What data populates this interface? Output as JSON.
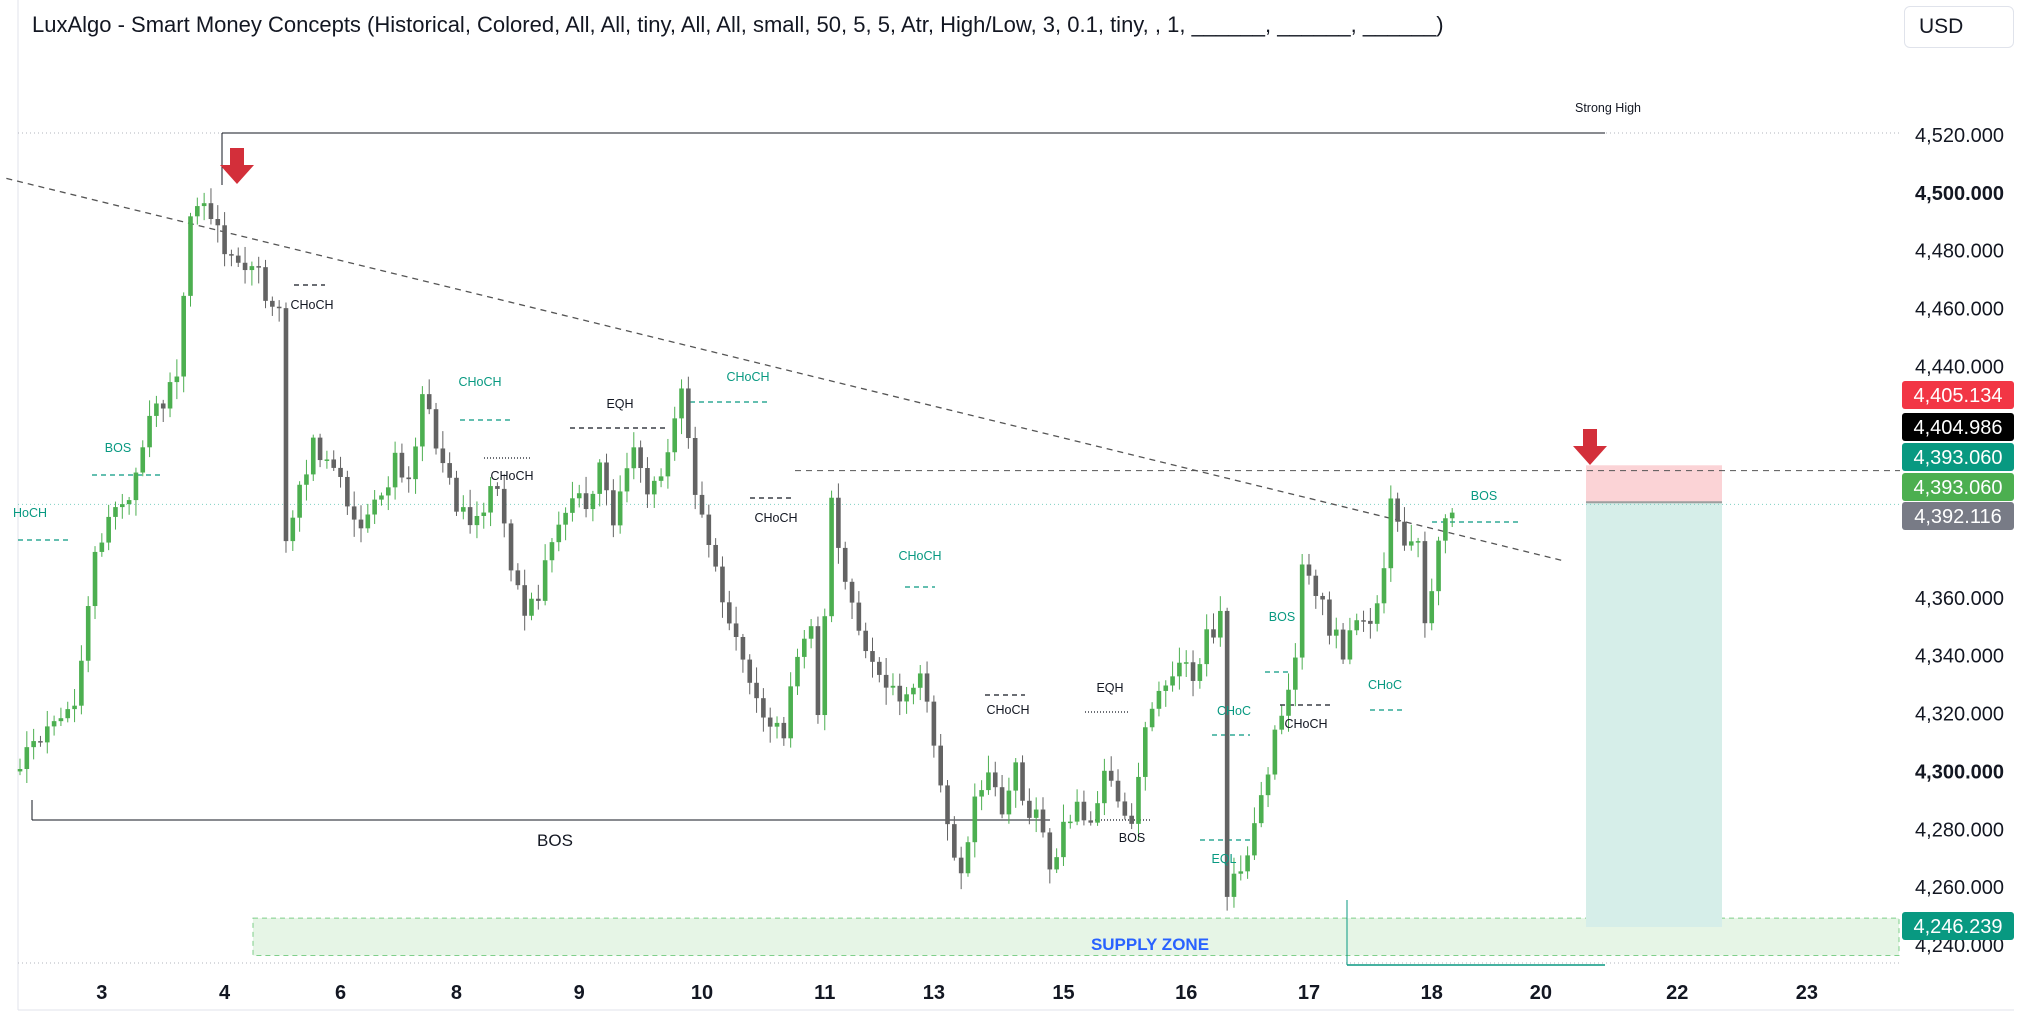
{
  "header": {
    "indicator_title": "LuxAlgo - Smart Money Concepts (Historical, Colored, All, All, tiny, All, All, small, 50, 5, 5, Atr, High/Low, 3, 0.1, tiny, , 1, ______, ______, ______)",
    "currency": "USD"
  },
  "colors": {
    "up": "#4caf50",
    "down": "#636363",
    "teal": "#089981",
    "sell_arrow": "#d32f3a",
    "stop_zone": "#fbd3d6",
    "target_zone": "#d6eee9",
    "supply_zone": "#e6f5e6",
    "supply_text": "#2962ff"
  },
  "chart_data": {
    "type": "candlestick",
    "y_axis": {
      "ylim": [
        4235,
        4528
      ],
      "ticks": [
        {
          "value": 4520,
          "label": "4,520.000",
          "bold": false
        },
        {
          "value": 4500,
          "label": "4,500.000",
          "bold": true
        },
        {
          "value": 4480,
          "label": "4,480.000",
          "bold": false
        },
        {
          "value": 4460,
          "label": "4,460.000",
          "bold": false
        },
        {
          "value": 4440,
          "label": "4,440.000",
          "bold": false
        },
        {
          "value": 4360,
          "label": "4,360.000",
          "bold": false
        },
        {
          "value": 4340,
          "label": "4,340.000",
          "bold": false
        },
        {
          "value": 4320,
          "label": "4,320.000",
          "bold": false
        },
        {
          "value": 4300,
          "label": "4,300.000",
          "bold": true
        },
        {
          "value": 4280,
          "label": "4,280.000",
          "bold": false
        },
        {
          "value": 4260,
          "label": "4,260.000",
          "bold": false
        },
        {
          "value": 4240,
          "label": "4,240.000",
          "bold": false
        }
      ]
    },
    "x_axis": {
      "ticks": [
        {
          "pos": 12,
          "label": "3"
        },
        {
          "pos": 30,
          "label": "4"
        },
        {
          "pos": 47,
          "label": "6"
        },
        {
          "pos": 64,
          "label": "8"
        },
        {
          "pos": 82,
          "label": "9"
        },
        {
          "pos": 100,
          "label": "10"
        },
        {
          "pos": 118,
          "label": "11"
        },
        {
          "pos": 134,
          "label": "13"
        },
        {
          "pos": 153,
          "label": "15"
        },
        {
          "pos": 171,
          "label": "16"
        },
        {
          "pos": 189,
          "label": "17"
        },
        {
          "pos": 207,
          "label": "18"
        },
        {
          "pos": 223,
          "label": "20"
        },
        {
          "pos": 243,
          "label": "22"
        },
        {
          "pos": 262,
          "label": "23"
        }
      ]
    },
    "price_labels": [
      {
        "value": 4405.134,
        "label": "4,405.134",
        "color": "#f23645"
      },
      {
        "value": 4404.986,
        "label": "4,404.986",
        "color": "#000000"
      },
      {
        "value": 4393.06,
        "label": "4,393.060",
        "color": "#089981"
      },
      {
        "value": 4393.06,
        "label": "4,393.060",
        "color": "#4caf50"
      },
      {
        "value": 4392.116,
        "label": "4,392.116",
        "color": "#787b86"
      },
      {
        "value": 4246.239,
        "label": "4,246.239",
        "color": "#089981"
      }
    ],
    "candle_anchors": [
      [
        0,
        4300
      ],
      [
        4,
        4312
      ],
      [
        9,
        4320
      ],
      [
        10,
        4335
      ],
      [
        12,
        4378
      ],
      [
        15,
        4388
      ],
      [
        17,
        4395
      ],
      [
        20,
        4420
      ],
      [
        24,
        4435
      ],
      [
        25,
        4462
      ],
      [
        26,
        4490
      ],
      [
        28,
        4495
      ],
      [
        31,
        4482
      ],
      [
        33,
        4474
      ],
      [
        35,
        4478
      ],
      [
        37,
        4465
      ],
      [
        39,
        4460
      ],
      [
        40,
        4380
      ],
      [
        44,
        4413
      ],
      [
        48,
        4400
      ],
      [
        51,
        4382
      ],
      [
        54,
        4395
      ],
      [
        56,
        4408
      ],
      [
        58,
        4398
      ],
      [
        60,
        4432
      ],
      [
        63,
        4405
      ],
      [
        65,
        4392
      ],
      [
        67,
        4385
      ],
      [
        71,
        4400
      ],
      [
        73,
        4372
      ],
      [
        75,
        4355
      ],
      [
        77,
        4362
      ],
      [
        79,
        4378
      ],
      [
        82,
        4395
      ],
      [
        84,
        4392
      ],
      [
        86,
        4405
      ],
      [
        88,
        4388
      ],
      [
        91,
        4412
      ],
      [
        93,
        4395
      ],
      [
        96,
        4408
      ],
      [
        98,
        4432
      ],
      [
        100,
        4398
      ],
      [
        102,
        4375
      ],
      [
        105,
        4352
      ],
      [
        107,
        4340
      ],
      [
        110,
        4322
      ],
      [
        113,
        4310
      ],
      [
        115,
        4342
      ],
      [
        117,
        4348
      ],
      [
        118,
        4322
      ],
      [
        120,
        4392
      ],
      [
        122,
        4368
      ],
      [
        124,
        4350
      ],
      [
        127,
        4330
      ],
      [
        130,
        4325
      ],
      [
        133,
        4332
      ],
      [
        135,
        4310
      ],
      [
        137,
        4282
      ],
      [
        139,
        4265
      ],
      [
        141,
        4290
      ],
      [
        143,
        4300
      ],
      [
        145,
        4288
      ],
      [
        147,
        4300
      ],
      [
        149,
        4285
      ],
      [
        150,
        4290
      ],
      [
        152,
        4266
      ],
      [
        154,
        4280
      ],
      [
        156,
        4290
      ],
      [
        158,
        4282
      ],
      [
        160,
        4300
      ],
      [
        162,
        4288
      ],
      [
        164,
        4282
      ],
      [
        166,
        4318
      ],
      [
        169,
        4328
      ],
      [
        171,
        4340
      ],
      [
        173,
        4334
      ],
      [
        175,
        4346
      ],
      [
        177,
        4352
      ],
      [
        178,
        4260
      ],
      [
        180,
        4268
      ],
      [
        182,
        4280
      ],
      [
        184,
        4300
      ],
      [
        186,
        4322
      ],
      [
        188,
        4340
      ],
      [
        189,
        4372
      ],
      [
        191,
        4362
      ],
      [
        193,
        4350
      ],
      [
        195,
        4342
      ],
      [
        197,
        4352
      ],
      [
        199,
        4348
      ],
      [
        201,
        4370
      ],
      [
        202,
        4392
      ],
      [
        204,
        4378
      ],
      [
        206,
        4378
      ],
      [
        207,
        4348
      ],
      [
        208,
        4360
      ],
      [
        209,
        4378
      ],
      [
        210,
        4390
      ]
    ],
    "n_candles": 211,
    "annotations": [
      {
        "text": "Strong High",
        "color": "#131722"
      },
      {
        "text": "CHoCH",
        "color": "#131722"
      },
      {
        "text": "BOS",
        "color": "#089981"
      },
      {
        "text": "HoCH",
        "color": "#089981"
      },
      {
        "text": "CHoCH",
        "color": "#089981"
      },
      {
        "text": "CHoCH",
        "color": "#131722"
      },
      {
        "text": "EQH",
        "color": "#131722"
      },
      {
        "text": "CHoCH",
        "color": "#089981"
      },
      {
        "text": "CHoCH",
        "color": "#131722"
      },
      {
        "text": "CHoCH",
        "color": "#089981"
      },
      {
        "text": "CHoCH",
        "color": "#131722"
      },
      {
        "text": "EQH",
        "color": "#131722"
      },
      {
        "text": "BOS",
        "color": "#131722"
      },
      {
        "text": "EQL",
        "color": "#089981"
      },
      {
        "text": "CHoC",
        "color": "#089981"
      },
      {
        "text": "BOS",
        "color": "#089981"
      },
      {
        "text": "CHoCH",
        "color": "#131722"
      },
      {
        "text": "CHoC",
        "color": "#089981"
      },
      {
        "text": "BOS",
        "color": "#089981"
      },
      {
        "text": "BOS",
        "color": "#131722"
      }
    ],
    "supply_zone": {
      "label": "SUPPLY ZONE",
      "y_top": 4250,
      "y_bottom": 4235
    },
    "position": {
      "entry": 4393.06,
      "stop": 4405.134,
      "target": 4246.239
    },
    "trendline": {
      "start": [
        -2,
        4505
      ],
      "end": [
        226,
        4373
      ]
    },
    "levels": {
      "strong_high": 4510,
      "major_bos": 4282,
      "dashed_resistance": 4405,
      "dotted_top": 4510,
      "dotted_entry": 4393,
      "dotted_bottom": 4236
    }
  }
}
